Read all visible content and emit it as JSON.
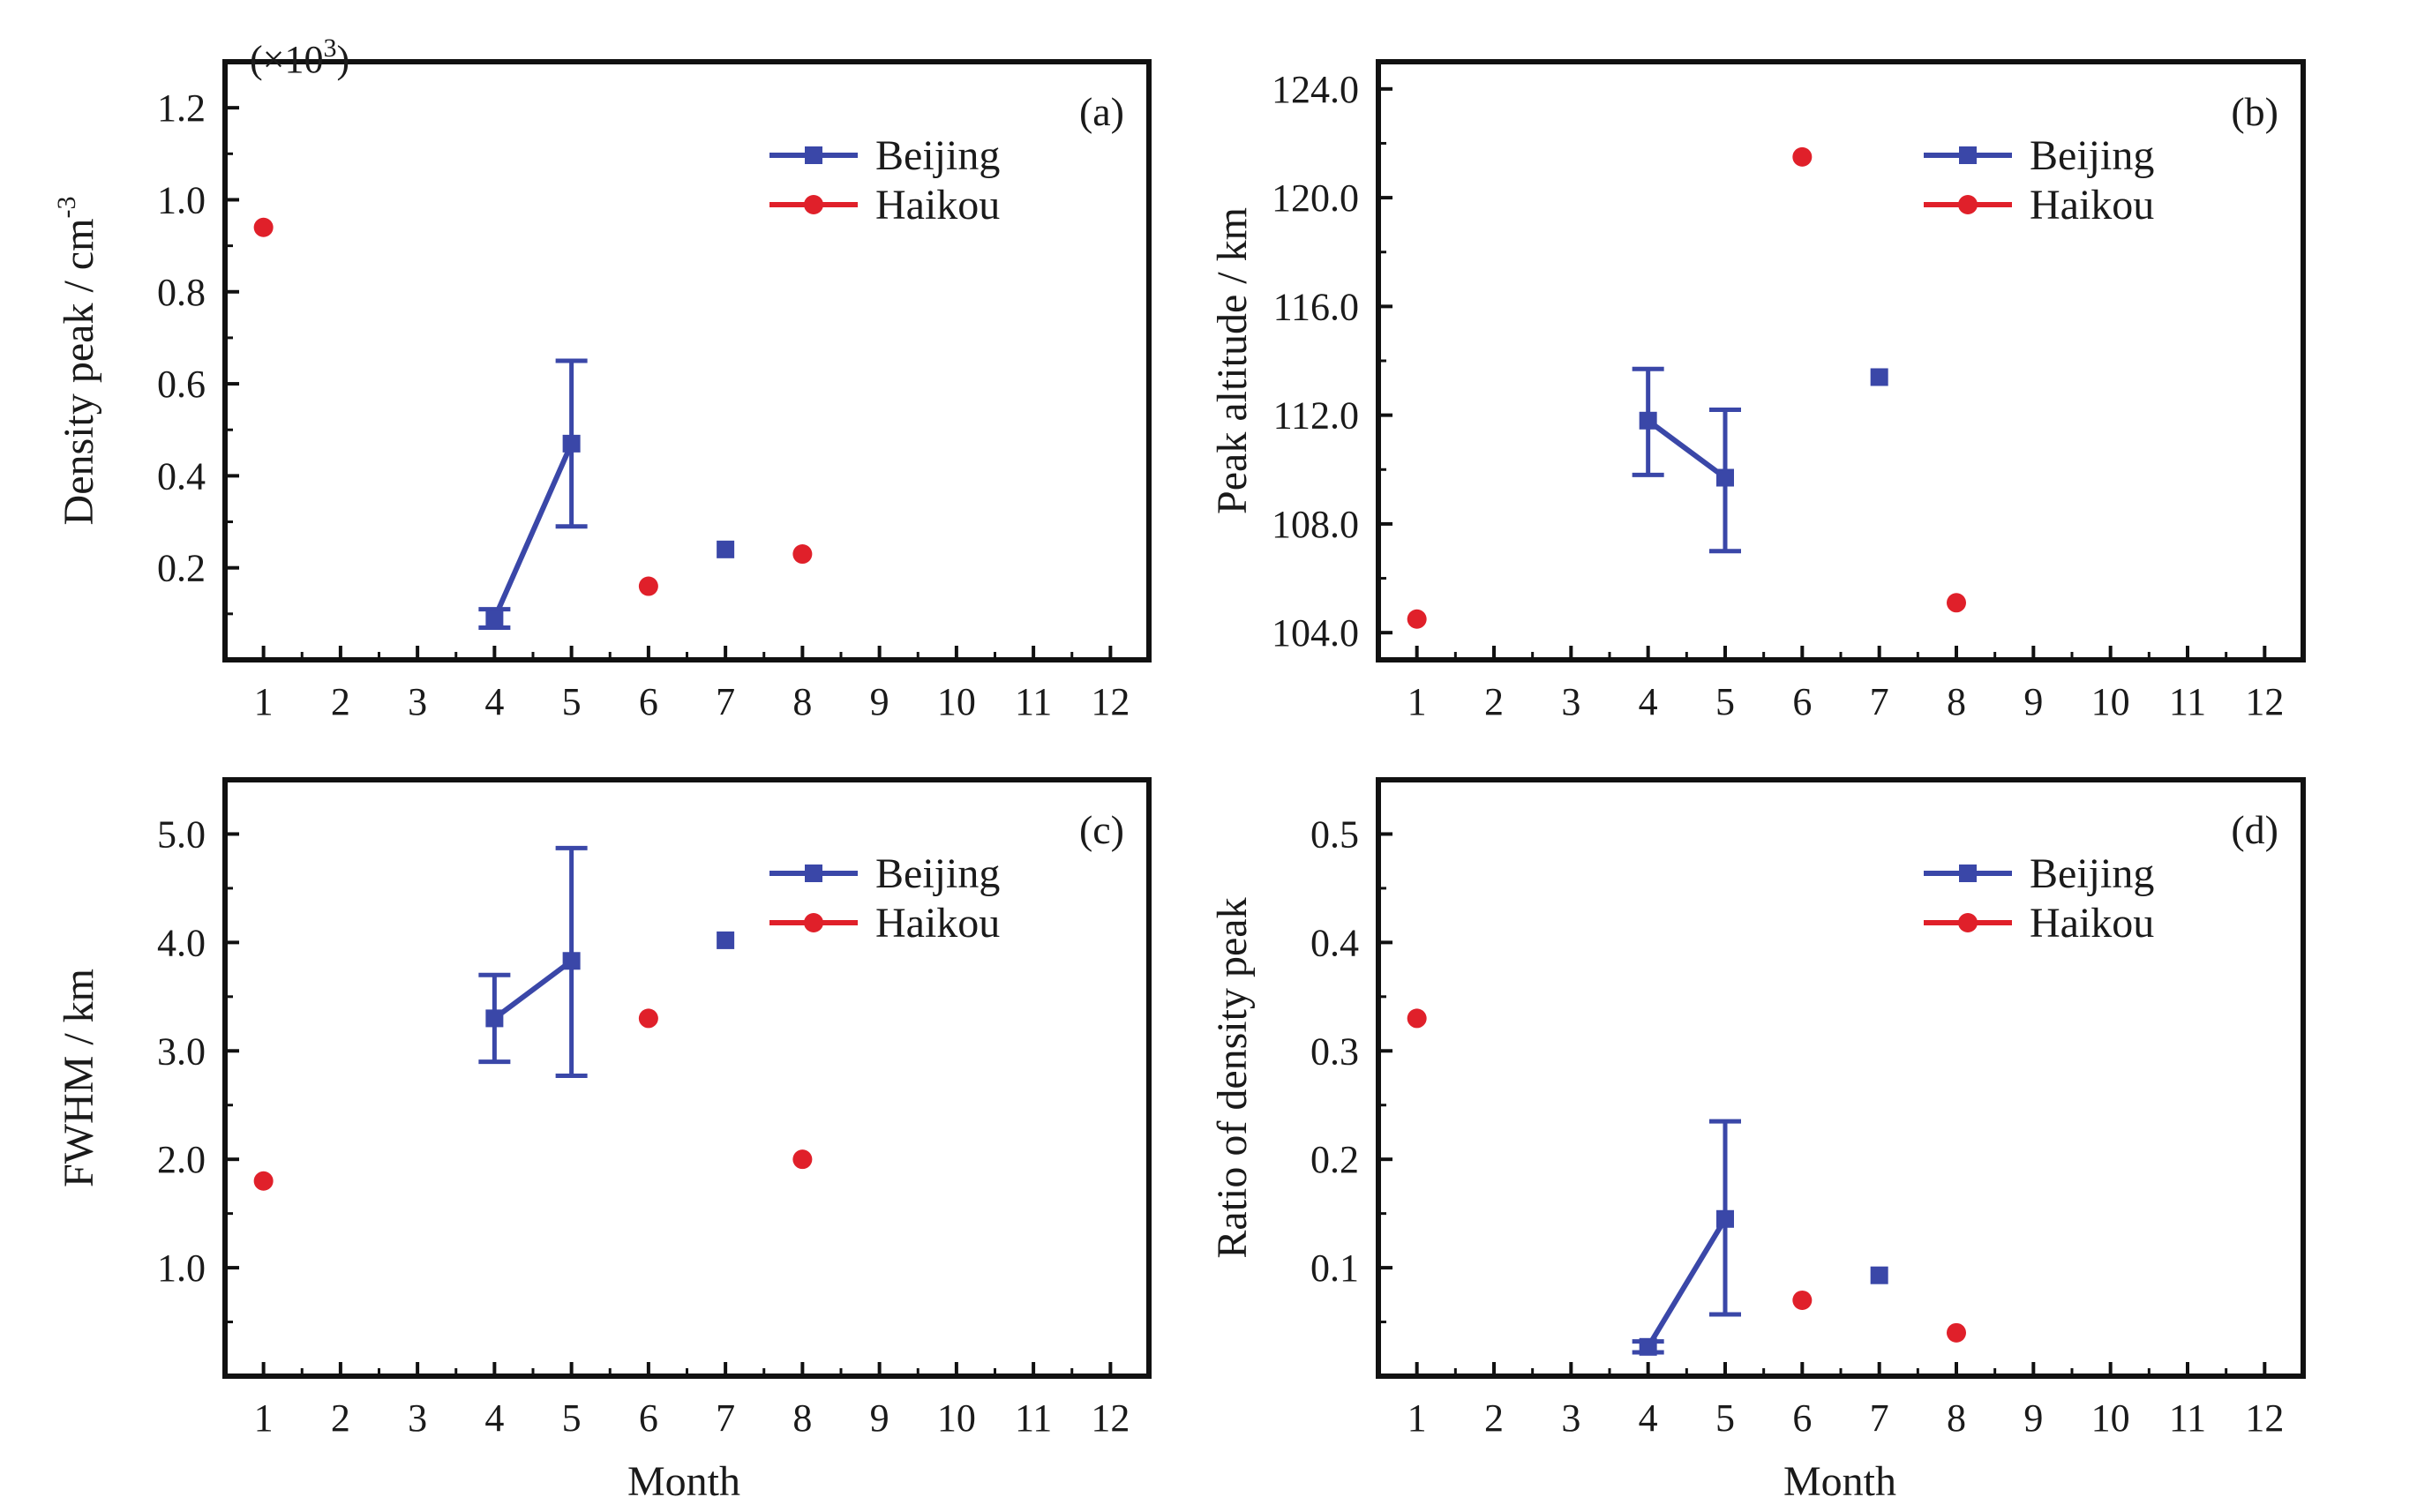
{
  "figure": {
    "xlabel": "Month",
    "series_colors": {
      "Beijing": "#3a47a8",
      "Haikou": "#e0202a"
    }
  },
  "chart_data": [
    {
      "type": "scatter",
      "panel_label": "(a)",
      "ylabel": "Density peak / cm",
      "ylabel_superscript": "-3",
      "y_multiplier": "(×10",
      "y_multiplier_exp": "3",
      "y_multiplier_close": ")",
      "xlim": [
        0.5,
        12.5
      ],
      "ylim": [
        0,
        1.3
      ],
      "xticks": [
        "1",
        "2",
        "3",
        "4",
        "5",
        "6",
        "7",
        "8",
        "9",
        "10",
        "11",
        "12"
      ],
      "yticks": [
        "0.2",
        "0.4",
        "0.6",
        "0.8",
        "1.0",
        "1.2"
      ],
      "ytick_values": [
        0.2,
        0.4,
        0.6,
        0.8,
        1.0,
        1.2
      ],
      "legend_position": "top-right",
      "series": [
        {
          "name": "Beijing",
          "marker": "square",
          "color": "#3a47a8",
          "x": [
            4,
            5,
            7
          ],
          "y": [
            0.09,
            0.47,
            0.24
          ],
          "err_low": [
            0.07,
            0.29,
            null
          ],
          "err_high": [
            0.11,
            0.65,
            null
          ],
          "connected": [
            [
              4,
              5
            ]
          ]
        },
        {
          "name": "Haikou",
          "marker": "circle",
          "color": "#e0202a",
          "x": [
            1,
            6,
            8
          ],
          "y": [
            0.94,
            0.16,
            0.23
          ]
        }
      ]
    },
    {
      "type": "scatter",
      "panel_label": "(b)",
      "ylabel": "Peak altitude / km",
      "xlim": [
        0.5,
        12.5
      ],
      "ylim": [
        103.0,
        125.0
      ],
      "xticks": [
        "1",
        "2",
        "3",
        "4",
        "5",
        "6",
        "7",
        "8",
        "9",
        "10",
        "11",
        "12"
      ],
      "yticks": [
        "104.0",
        "108.0",
        "112.0",
        "116.0",
        "120.0",
        "124.0"
      ],
      "ytick_values": [
        104,
        108,
        112,
        116,
        120,
        124
      ],
      "legend_position": "top-right",
      "series": [
        {
          "name": "Beijing",
          "marker": "square",
          "color": "#3a47a8",
          "x": [
            4,
            5,
            7
          ],
          "y": [
            111.8,
            109.7,
            113.4
          ],
          "err_low": [
            109.8,
            107.0,
            null
          ],
          "err_high": [
            113.7,
            112.2,
            null
          ],
          "connected": [
            [
              4,
              5
            ]
          ]
        },
        {
          "name": "Haikou",
          "marker": "circle",
          "color": "#e0202a",
          "x": [
            1,
            6,
            8
          ],
          "y": [
            104.5,
            121.5,
            105.1
          ]
        }
      ]
    },
    {
      "type": "scatter",
      "panel_label": "(c)",
      "ylabel": "FWHM / km",
      "xlim": [
        0.5,
        12.5
      ],
      "ylim": [
        0,
        5.5
      ],
      "xticks": [
        "1",
        "2",
        "3",
        "4",
        "5",
        "6",
        "7",
        "8",
        "9",
        "10",
        "11",
        "12"
      ],
      "yticks": [
        "1.0",
        "2.0",
        "3.0",
        "4.0",
        "5.0"
      ],
      "ytick_values": [
        1,
        2,
        3,
        4,
        5
      ],
      "legend_position": "top-right",
      "series": [
        {
          "name": "Beijing",
          "marker": "square",
          "color": "#3a47a8",
          "x": [
            4,
            5,
            7
          ],
          "y": [
            3.3,
            3.83,
            4.02
          ],
          "err_low": [
            2.9,
            2.77,
            null
          ],
          "err_high": [
            3.7,
            4.87,
            null
          ],
          "connected": [
            [
              4,
              5
            ]
          ]
        },
        {
          "name": "Haikou",
          "marker": "circle",
          "color": "#e0202a",
          "x": [
            1,
            6,
            8
          ],
          "y": [
            1.8,
            3.3,
            2.0
          ]
        }
      ]
    },
    {
      "type": "scatter",
      "panel_label": "(d)",
      "ylabel": "Ratio of density peak",
      "xlim": [
        0.5,
        12.5
      ],
      "ylim": [
        0,
        0.55
      ],
      "xticks": [
        "1",
        "2",
        "3",
        "4",
        "5",
        "6",
        "7",
        "8",
        "9",
        "10",
        "11",
        "12"
      ],
      "yticks": [
        "0.1",
        "0.2",
        "0.3",
        "0.4",
        "0.5"
      ],
      "ytick_values": [
        0.1,
        0.2,
        0.3,
        0.4,
        0.5
      ],
      "legend_position": "top-right",
      "series": [
        {
          "name": "Beijing",
          "marker": "square",
          "color": "#3a47a8",
          "x": [
            4,
            5,
            7
          ],
          "y": [
            0.027,
            0.145,
            0.093
          ],
          "err_low": [
            0.022,
            0.057,
            null
          ],
          "err_high": [
            0.032,
            0.235,
            null
          ],
          "connected": [
            [
              4,
              5
            ]
          ]
        },
        {
          "name": "Haikou",
          "marker": "circle",
          "color": "#e0202a",
          "x": [
            1,
            6,
            8
          ],
          "y": [
            0.33,
            0.07,
            0.04
          ]
        }
      ]
    }
  ]
}
